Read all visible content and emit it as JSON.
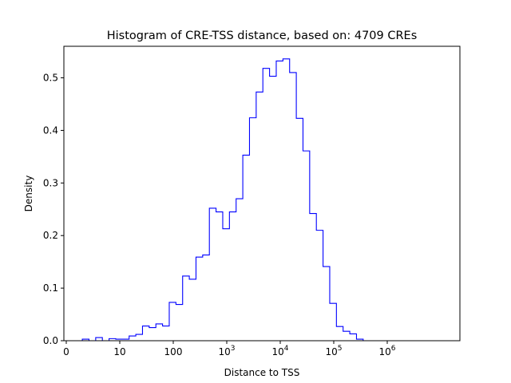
{
  "chart_data": {
    "type": "histogram",
    "title": "Histogram of CRE-TSS distance, based on: 4709 CREs",
    "xlabel": "Distance to TSS",
    "ylabel": "Density",
    "x_scale": "symlog-like (tick labels: 0, 10, 100, 10^3, 10^4, 10^5, 10^6)",
    "x_ticks": [
      {
        "label": "0",
        "value": 0
      },
      {
        "label": "10",
        "value": 10
      },
      {
        "label": "100",
        "value": 100
      },
      {
        "label": "10",
        "sup": "3",
        "value": 1000
      },
      {
        "label": "10",
        "sup": "4",
        "value": 10000
      },
      {
        "label": "10",
        "sup": "5",
        "value": 100000
      },
      {
        "label": "10",
        "sup": "6",
        "value": 1000000
      }
    ],
    "y_ticks": [
      0.0,
      0.1,
      0.2,
      0.3,
      0.4,
      0.5
    ],
    "ylim": [
      0,
      0.56
    ],
    "grid": false,
    "legend": "none",
    "line_color": "#0000ff",
    "bins_log10_edges_start": 0.3,
    "bin_width_log10": 0.125,
    "densities": [
      0.003,
      0.0,
      0.006,
      0.0,
      0.004,
      0.003,
      0.003,
      0.009,
      0.012,
      0.028,
      0.025,
      0.032,
      0.028,
      0.073,
      0.069,
      0.123,
      0.117,
      0.159,
      0.163,
      0.252,
      0.245,
      0.213,
      0.245,
      0.27,
      0.353,
      0.424,
      0.473,
      0.518,
      0.503,
      0.532,
      0.536,
      0.51,
      0.423,
      0.361,
      0.242,
      0.21,
      0.141,
      0.071,
      0.027,
      0.018,
      0.013,
      0.003,
      0.0,
      0.0,
      0.0,
      0.0,
      0.0,
      0.0,
      0.0,
      0.0,
      0.0,
      0.0,
      0.0,
      0.0
    ]
  }
}
